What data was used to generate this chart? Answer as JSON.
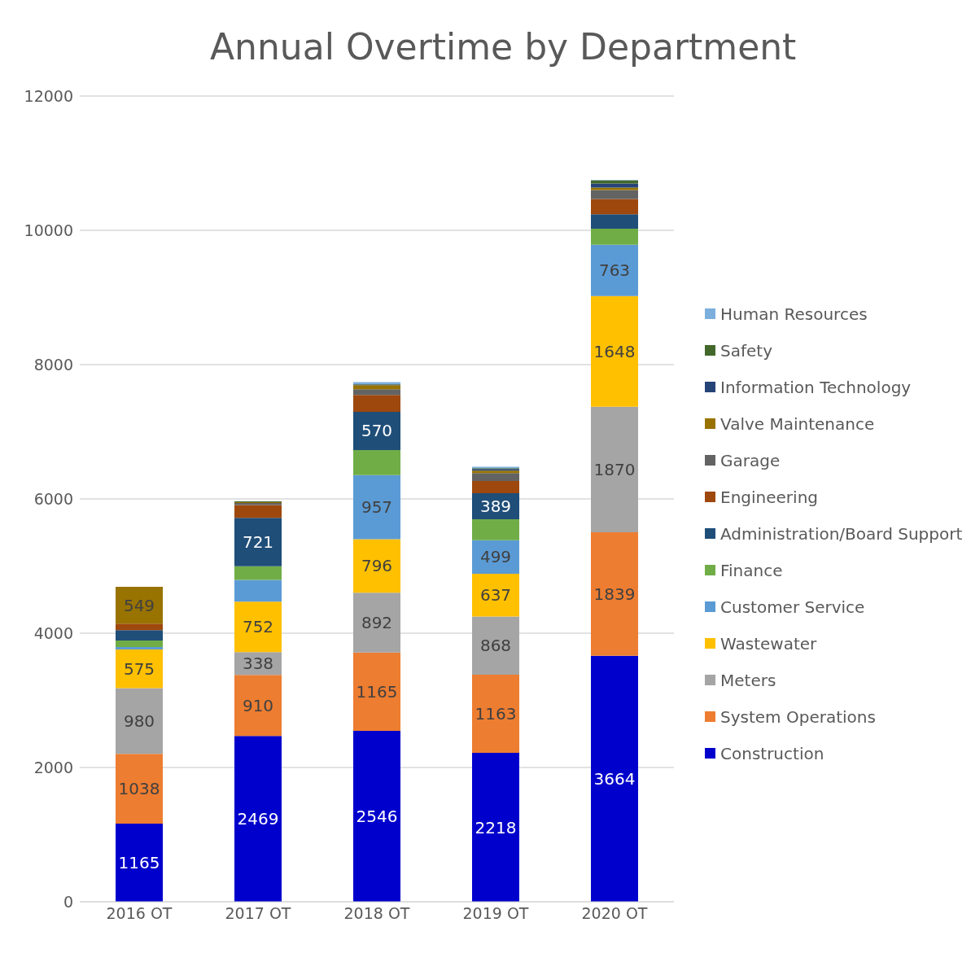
{
  "chart_data": {
    "type": "bar",
    "title": "Annual Overtime by Department",
    "stacked": true,
    "categories": [
      "2016 OT",
      "2017 OT",
      "2018 OT",
      "2019 OT",
      "2020 OT"
    ],
    "ylim": [
      0,
      12000
    ],
    "yticks": [
      0,
      2000,
      4000,
      6000,
      8000,
      10000,
      12000
    ],
    "grid": "y",
    "legend": "right",
    "series": [
      {
        "name": "Construction",
        "color": "#0000cc",
        "values": [
          1165,
          2469,
          2546,
          2218,
          3664
        ],
        "value_labels": [
          "1165",
          "2469",
          "2546",
          "2218",
          "3664"
        ]
      },
      {
        "name": "System Operations",
        "color": "#ed7d31",
        "values": [
          1038,
          910,
          1165,
          1163,
          1839
        ],
        "value_labels": [
          "1038",
          "910",
          "1165",
          "1163",
          "1839"
        ]
      },
      {
        "name": "Meters",
        "color": "#a5a5a5",
        "values": [
          980,
          338,
          892,
          868,
          1870
        ],
        "value_labels": [
          "980",
          "338",
          "892",
          "868",
          "1870"
        ]
      },
      {
        "name": "Wastewater",
        "color": "#ffc000",
        "values": [
          575,
          752,
          796,
          637,
          1648
        ],
        "value_labels": [
          "575",
          "752",
          "796",
          "637",
          "1648"
        ]
      },
      {
        "name": "Customer Service",
        "color": "#5b9bd5",
        "values": [
          36,
          324,
          957,
          499,
          763
        ],
        "value_labels": [
          null,
          null,
          "957",
          "499",
          "763"
        ]
      },
      {
        "name": "Finance",
        "color": "#70ad47",
        "values": [
          96,
          204,
          372,
          312,
          240
        ]
      },
      {
        "name": "Administration/Board Support",
        "color": "#1f4e79",
        "values": [
          156,
          721,
          570,
          389,
          216
        ],
        "value_labels": [
          null,
          "721",
          "570",
          "389",
          null
        ]
      },
      {
        "name": "Engineering",
        "color": "#9e480e",
        "values": [
          96,
          192,
          252,
          180,
          228
        ]
      },
      {
        "name": "Garage",
        "color": "#636363",
        "values": [
          0,
          30,
          84,
          120,
          132
        ]
      },
      {
        "name": "Valve Maintenance",
        "color": "#997300",
        "values": [
          549,
          12,
          60,
          36,
          36
        ],
        "value_labels": [
          "549",
          null,
          null,
          null,
          null
        ]
      },
      {
        "name": "Information Technology",
        "color": "#264478",
        "values": [
          0,
          0,
          10,
          24,
          60
        ]
      },
      {
        "name": "Safety",
        "color": "#43682b",
        "values": [
          0,
          12,
          6,
          12,
          48
        ]
      },
      {
        "name": "Human Resources",
        "color": "#7cafdd",
        "values": [
          0,
          0,
          30,
          20,
          8
        ]
      }
    ]
  }
}
